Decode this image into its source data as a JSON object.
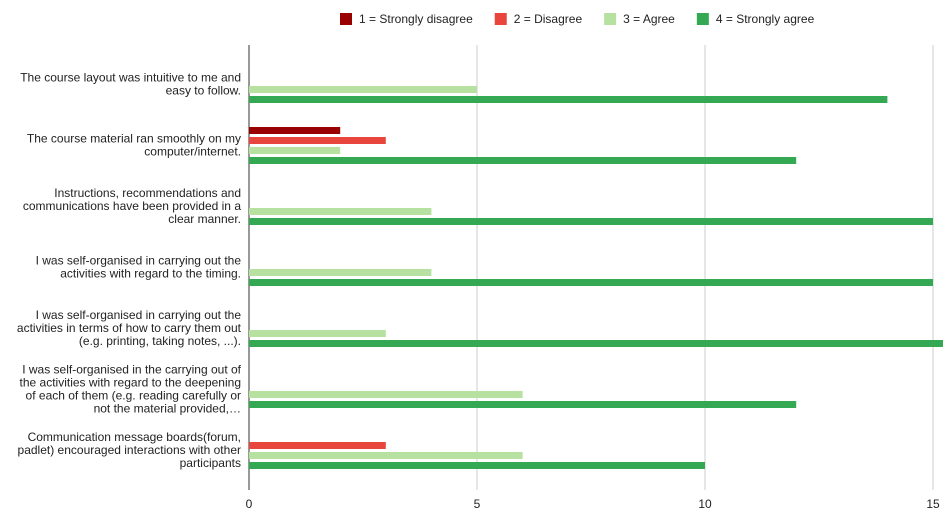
{
  "chart_data": {
    "type": "hbar",
    "categories": [
      "The course layout was intuitive to me and easy to follow.",
      "The course material ran smoothly on my computer/internet.",
      "Instructions, recommendations and communications have been provided in a clear manner.",
      "I was self-organised in carrying out the activities with regard to the timing.",
      "I was self-organised in carrying out the activities in terms of how to carry them out (e.g. printing, taking notes, ...).",
      "I was self-organised in the carrying out of the activities with regard to the deepening of each of them (e.g. reading carefully or not the material provided,…",
      "Communication message boards(forum, padlet) encouraged interactions with other participants"
    ],
    "series": [
      {
        "name": "1 = Strongly disagree",
        "color": "#990000",
        "values": [
          0,
          2,
          0,
          0,
          0,
          0,
          0
        ]
      },
      {
        "name": "2 = Disagree",
        "color": "#e8453c",
        "values": [
          0,
          3,
          0,
          0,
          0,
          0,
          3
        ]
      },
      {
        "name": "3 = Agree",
        "color": "#b7e1a1",
        "values": [
          5,
          2,
          4,
          4,
          3,
          6,
          6
        ]
      },
      {
        "name": "4 = Strongly agree",
        "color": "#34a853",
        "values": [
          14,
          12,
          15,
          15,
          16,
          12,
          10
        ]
      }
    ],
    "xlim": [
      0,
      15
    ],
    "xticks": [
      0,
      5,
      10,
      15
    ],
    "grid": true,
    "legend": "top"
  }
}
